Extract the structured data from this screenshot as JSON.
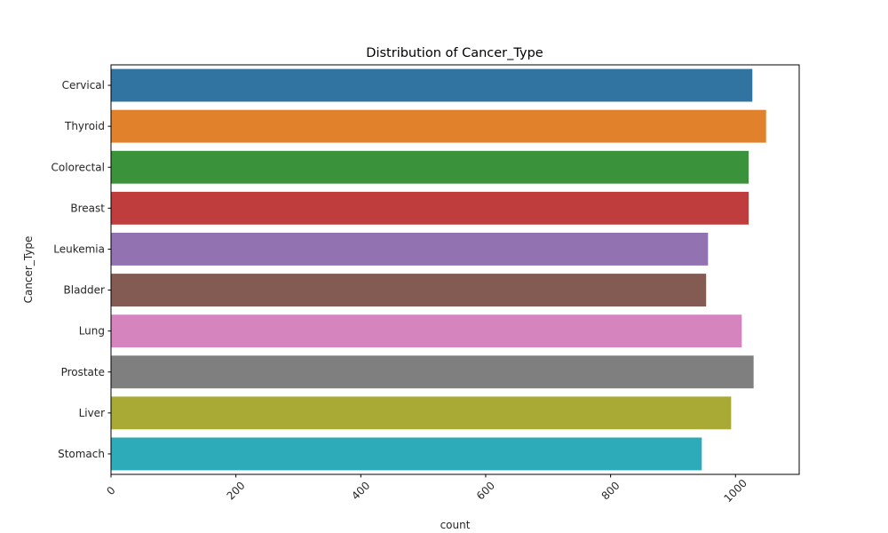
{
  "chart_data": {
    "type": "bar",
    "orientation": "horizontal",
    "title": "Distribution of Cancer_Type",
    "xlabel": "count",
    "ylabel": "Cancer_Type",
    "categories": [
      "Cervical",
      "Thyroid",
      "Colorectal",
      "Breast",
      "Leukemia",
      "Bladder",
      "Lung",
      "Prostate",
      "Liver",
      "Stomach"
    ],
    "values": [
      1027,
      1049,
      1021,
      1021,
      956,
      953,
      1010,
      1029,
      993,
      946
    ],
    "colors": [
      "#3274a1",
      "#e1812c",
      "#3a923a",
      "#c03d3e",
      "#9372b2",
      "#845b53",
      "#d684bd",
      "#7f7f7f",
      "#a9aa35",
      "#2eabb8"
    ],
    "xlim": [
      0,
      1102
    ],
    "xticks": [
      0,
      200,
      400,
      600,
      800,
      1000
    ],
    "xtick_rotation": 45,
    "grid": false,
    "legend": "none"
  }
}
